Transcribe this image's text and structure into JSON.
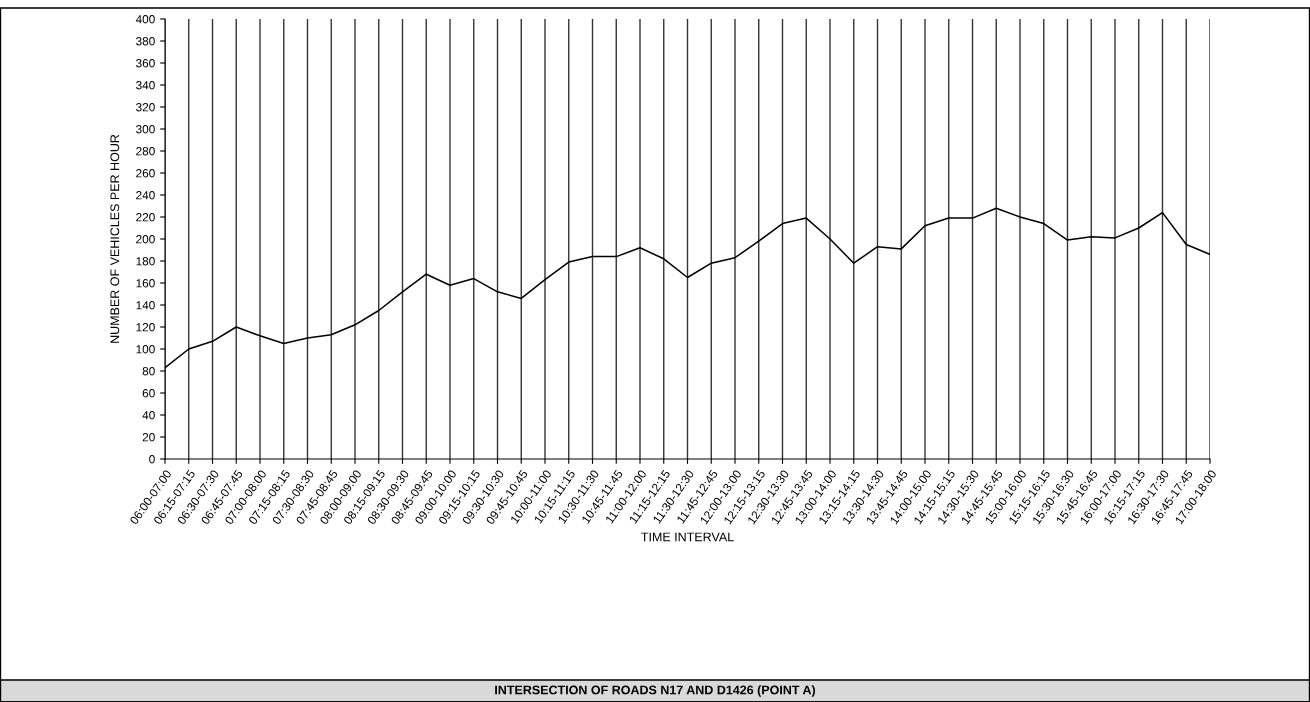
{
  "chart_data": {
    "type": "line",
    "title": "INTERSECTION OF ROADS N17 AND D1426 (POINT A)",
    "xlabel": "TIME INTERVAL",
    "ylabel": "NUMBER OF VEHICLES PER HOUR",
    "categories": [
      "06:00-07:00",
      "06:15-07:15",
      "06:30-07:30",
      "06:45-07:45",
      "07:00-08:00",
      "07:15-08:15",
      "07:30-08:30",
      "07:45-08:45",
      "08:00-09:00",
      "08:15-09:15",
      "08:30-09:30",
      "08:45-09:45",
      "09:00-10:00",
      "09:15-10:15",
      "09:30-10:30",
      "09:45-10:45",
      "10:00-11:00",
      "10:15-11:15",
      "10:30-11:30",
      "10:45-11:45",
      "11:00-12:00",
      "11:15-12:15",
      "11:30-12:30",
      "11:45-12:45",
      "12:00-13:00",
      "12:15-13:15",
      "12:30-13:30",
      "12:45-13:45",
      "13:00-14:00",
      "13:15-14:15",
      "13:30-14:30",
      "13:45-14:45",
      "14:00-15:00",
      "14:15-15:15",
      "14:30-15:30",
      "14:45-15:45",
      "15:00-16:00",
      "15:15-16:15",
      "15:30-16:30",
      "15:45-16:45",
      "16:00-17:00",
      "16:15-17:15",
      "16:30-17:30",
      "16:45-17:45",
      "17:00-18:00"
    ],
    "series": [
      {
        "color": "#000000",
        "values": [
          83,
          100,
          107,
          120,
          112,
          105,
          110,
          113,
          122,
          135,
          152,
          168,
          158,
          164,
          152,
          146,
          163,
          179,
          184,
          184,
          192,
          182,
          165,
          178,
          183,
          198,
          214,
          219,
          200,
          178,
          193,
          191,
          212,
          219,
          219,
          228,
          220,
          214,
          199,
          202,
          201,
          210,
          224,
          195,
          186
        ]
      }
    ],
    "ylim": [
      0,
      400
    ],
    "yticks": [
      0,
      20,
      40,
      60,
      80,
      100,
      120,
      140,
      160,
      180,
      200,
      220,
      240,
      260,
      280,
      300,
      320,
      340,
      360,
      380,
      400
    ],
    "grid": "x",
    "marker": "none",
    "line_style": "solid",
    "legend": false
  }
}
